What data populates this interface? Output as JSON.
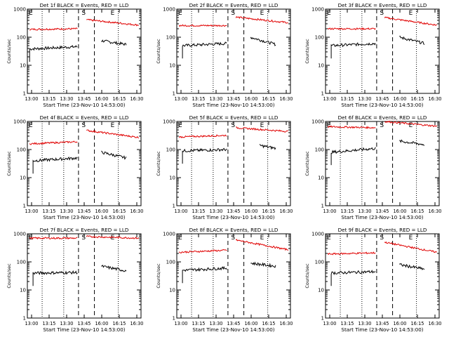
{
  "figure": {
    "ylabel": "Counts/sec",
    "xlabel": "Start Time (23-Nov-10 14:53:00)",
    "x_ticks": [
      "13:00",
      "13:15",
      "13:30",
      "13:45",
      "16:00",
      "16:15",
      "16:30"
    ],
    "y_ticks": [
      "1",
      "10",
      "100",
      "1000"
    ],
    "marker_labels": [
      "E",
      "S",
      "E"
    ],
    "series_colors": {
      "events": "#000000",
      "lld": "#e00000"
    }
  },
  "chart_data": [
    {
      "type": "line",
      "title": "Det 1f BLACK = Events, RED = LLD",
      "ylim": [
        1,
        1000
      ],
      "y_scale": "log",
      "series": [
        {
          "name": "Events",
          "segments": [
            {
              "x": [
                0.02,
                0.44
              ],
              "y": [
                38,
                46
              ]
            },
            {
              "x": [
                0.65,
                0.87
              ],
              "y": [
                75,
                55
              ]
            }
          ]
        },
        {
          "name": "LLD",
          "segments": [
            {
              "x": [
                0.02,
                0.44
              ],
              "y": [
                190,
                200
              ]
            },
            {
              "x": [
                0.52,
                0.98
              ],
              "y": [
                420,
                270
              ]
            }
          ]
        }
      ]
    },
    {
      "type": "line",
      "title": "Det 2f BLACK = Events, RED = LLD",
      "ylim": [
        1,
        1000
      ],
      "y_scale": "log",
      "series": [
        {
          "name": "Events",
          "segments": [
            {
              "x": [
                0.05,
                0.44
              ],
              "y": [
                50,
                60
              ]
            },
            {
              "x": [
                0.65,
                0.87
              ],
              "y": [
                100,
                55
              ]
            }
          ]
        },
        {
          "name": "LLD",
          "segments": [
            {
              "x": [
                0.02,
                0.44
              ],
              "y": [
                260,
                260
              ]
            },
            {
              "x": [
                0.52,
                0.98
              ],
              "y": [
                520,
                330
              ]
            }
          ]
        }
      ]
    },
    {
      "type": "line",
      "title": "Det 3f BLACK = Events, RED = LLD",
      "ylim": [
        1,
        1000
      ],
      "y_scale": "log",
      "series": [
        {
          "name": "Events",
          "segments": [
            {
              "x": [
                0.05,
                0.44
              ],
              "y": [
                50,
                60
              ]
            },
            {
              "x": [
                0.65,
                0.87
              ],
              "y": [
                100,
                60
              ]
            }
          ]
        },
        {
          "name": "LLD",
          "segments": [
            {
              "x": [
                0.02,
                0.44
              ],
              "y": [
                200,
                200
              ]
            },
            {
              "x": [
                0.52,
                0.98
              ],
              "y": [
                500,
                270
              ]
            }
          ]
        }
      ]
    },
    {
      "type": "line",
      "title": "Det 4f BLACK = Events, RED = LLD",
      "ylim": [
        1,
        1000
      ],
      "y_scale": "log",
      "series": [
        {
          "name": "Events",
          "segments": [
            {
              "x": [
                0.05,
                0.44
              ],
              "y": [
                40,
                50
              ]
            },
            {
              "x": [
                0.65,
                0.87
              ],
              "y": [
                80,
                50
              ]
            }
          ]
        },
        {
          "name": "LLD",
          "segments": [
            {
              "x": [
                0.02,
                0.44
              ],
              "y": [
                160,
                190
              ]
            },
            {
              "x": [
                0.52,
                0.98
              ],
              "y": [
                480,
                270
              ]
            }
          ]
        }
      ]
    },
    {
      "type": "line",
      "title": "Det 5f BLACK = Events, RED = LLD",
      "ylim": [
        1,
        1000
      ],
      "y_scale": "log",
      "series": [
        {
          "name": "Events",
          "segments": [
            {
              "x": [
                0.05,
                0.44
              ],
              "y": [
                90,
                100
              ]
            },
            {
              "x": [
                0.73,
                0.87
              ],
              "y": [
                140,
                110
              ]
            }
          ]
        },
        {
          "name": "LLD",
          "segments": [
            {
              "x": [
                0.02,
                0.44
              ],
              "y": [
                280,
                320
              ]
            },
            {
              "x": [
                0.52,
                0.98
              ],
              "y": [
                600,
                440
              ]
            }
          ]
        }
      ]
    },
    {
      "type": "line",
      "title": "Det 6f BLACK = Events, RED = LLD",
      "ylim": [
        1,
        1000
      ],
      "y_scale": "log",
      "series": [
        {
          "name": "Events",
          "segments": [
            {
              "x": [
                0.05,
                0.44
              ],
              "y": [
                80,
                110
              ]
            },
            {
              "x": [
                0.65,
                0.87
              ],
              "y": [
                200,
                150
              ]
            }
          ]
        },
        {
          "name": "LLD",
          "segments": [
            {
              "x": [
                0.02,
                0.44
              ],
              "y": [
                650,
                600
              ]
            },
            {
              "x": [
                0.52,
                0.98
              ],
              "y": [
                1000,
                680
              ]
            }
          ]
        }
      ]
    },
    {
      "type": "line",
      "title": "Det 7f BLACK = Events, RED = LLD",
      "ylim": [
        1,
        1000
      ],
      "y_scale": "log",
      "series": [
        {
          "name": "Events",
          "segments": [
            {
              "x": [
                0.05,
                0.44
              ],
              "y": [
                40,
                42
              ]
            },
            {
              "x": [
                0.65,
                0.87
              ],
              "y": [
                70,
                48
              ]
            }
          ]
        },
        {
          "name": "LLD",
          "segments": [
            {
              "x": [
                0.02,
                0.44
              ],
              "y": [
                700,
                700
              ]
            },
            {
              "x": [
                0.52,
                0.98
              ],
              "y": [
                800,
                700
              ]
            }
          ]
        }
      ]
    },
    {
      "type": "line",
      "title": "Det 8f BLACK = Events, RED = LLD",
      "ylim": [
        1,
        1000
      ],
      "y_scale": "log",
      "series": [
        {
          "name": "Events",
          "segments": [
            {
              "x": [
                0.05,
                0.44
              ],
              "y": [
                50,
                60
              ]
            },
            {
              "x": [
                0.65,
                0.87
              ],
              "y": [
                90,
                70
              ]
            }
          ]
        },
        {
          "name": "LLD",
          "segments": [
            {
              "x": [
                0.02,
                0.44
              ],
              "y": [
                220,
                260
              ]
            },
            {
              "x": [
                0.52,
                0.98
              ],
              "y": [
                600,
                270
              ]
            }
          ]
        }
      ]
    },
    {
      "type": "line",
      "title": "Det 9f BLACK = Events, RED = LLD",
      "ylim": [
        1,
        1000
      ],
      "y_scale": "log",
      "series": [
        {
          "name": "Events",
          "segments": [
            {
              "x": [
                0.05,
                0.44
              ],
              "y": [
                40,
                45
              ]
            },
            {
              "x": [
                0.65,
                0.87
              ],
              "y": [
                80,
                55
              ]
            }
          ]
        },
        {
          "name": "LLD",
          "segments": [
            {
              "x": [
                0.02,
                0.44
              ],
              "y": [
                190,
                210
              ]
            },
            {
              "x": [
                0.52,
                0.98
              ],
              "y": [
                500,
                220
              ]
            }
          ]
        }
      ]
    }
  ]
}
